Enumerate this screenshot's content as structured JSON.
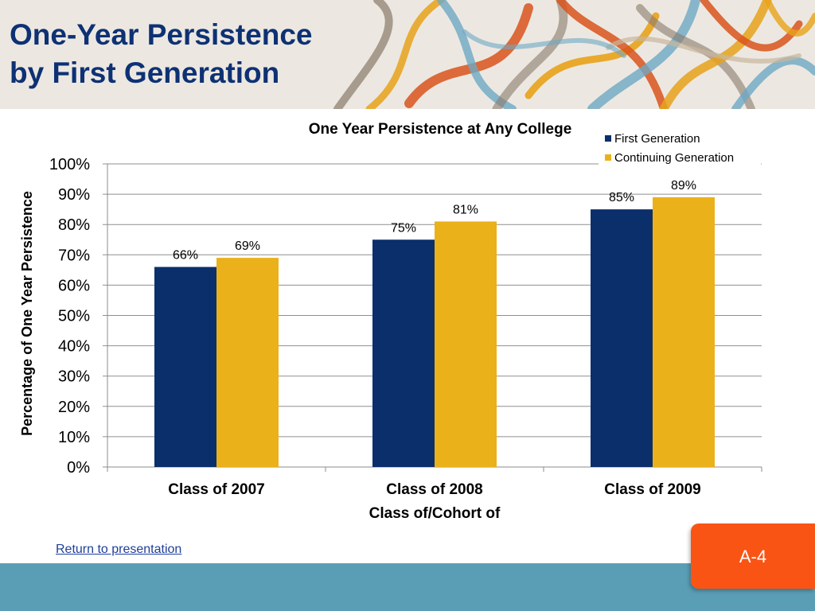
{
  "slide": {
    "title_line1": "One-Year Persistence",
    "title_line2": "by First Generation",
    "return_link": "Return to presentation",
    "page_number": "A-4"
  },
  "colors": {
    "title": "#0e3174",
    "first_generation": "#0b2f6b",
    "continuing_generation": "#ebb11b",
    "footer_bar": "#5a9eb6",
    "page_tab": "#fa5415",
    "header_bg": "#ece8e1"
  },
  "chart_data": {
    "type": "bar",
    "title": "One Year Persistence at Any College",
    "xlabel": "Class of/Cohort of",
    "ylabel": "Percentage of  One Year Persistence",
    "categories": [
      "Class of 2007",
      "Class of 2008",
      "Class of 2009"
    ],
    "series": [
      {
        "name": "First Generation",
        "values": [
          66,
          75,
          85
        ],
        "labels": [
          "66%",
          "75%",
          "85%"
        ]
      },
      {
        "name": "Continuing Generation",
        "values": [
          69,
          81,
          89
        ],
        "labels": [
          "69%",
          "81%",
          "89%"
        ]
      }
    ],
    "ylim": [
      0,
      100
    ],
    "yticks": [
      0,
      10,
      20,
      30,
      40,
      50,
      60,
      70,
      80,
      90,
      100
    ],
    "ytick_labels": [
      "0%",
      "10%",
      "20%",
      "30%",
      "40%",
      "50%",
      "60%",
      "70%",
      "80%",
      "90%",
      "100%"
    ],
    "grid": true,
    "legend": "top-right"
  }
}
